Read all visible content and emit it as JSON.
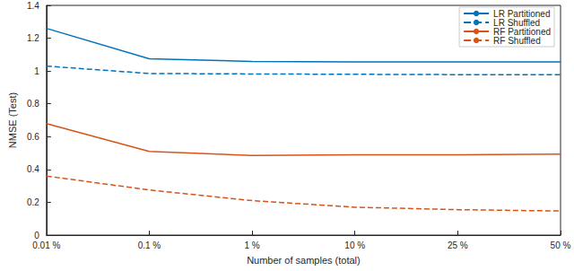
{
  "chart_data": {
    "type": "line",
    "x_label": "Number of samples (total)",
    "y_label": "NMSE (Test)",
    "categories": [
      "0.01 %",
      "0.1 %",
      "1 %",
      "10 %",
      "25 %",
      "50 %"
    ],
    "ylim": [
      0,
      1.4
    ],
    "yticks": [
      0,
      0.2,
      0.4,
      0.6,
      0.8,
      1,
      1.2,
      1.4
    ],
    "grid": false,
    "legend": "upper right",
    "marker": "none",
    "series": [
      {
        "name": "LR Partitioned",
        "color": "#0072BD",
        "line_style": "solid",
        "values": [
          1.26,
          1.075,
          1.058,
          1.055,
          1.055,
          1.055
        ]
      },
      {
        "name": "LR Shuffled",
        "color": "#0072BD",
        "line_style": "dashed",
        "values": [
          1.03,
          0.985,
          0.982,
          0.98,
          0.978,
          0.977
        ]
      },
      {
        "name": "RF Partitioned",
        "color": "#D95319",
        "line_style": "solid",
        "values": [
          0.68,
          0.51,
          0.485,
          0.49,
          0.49,
          0.493
        ]
      },
      {
        "name": "RF Shuffled",
        "color": "#D95319",
        "line_style": "dashed",
        "values": [
          0.36,
          0.275,
          0.21,
          0.17,
          0.155,
          0.147
        ]
      }
    ]
  }
}
